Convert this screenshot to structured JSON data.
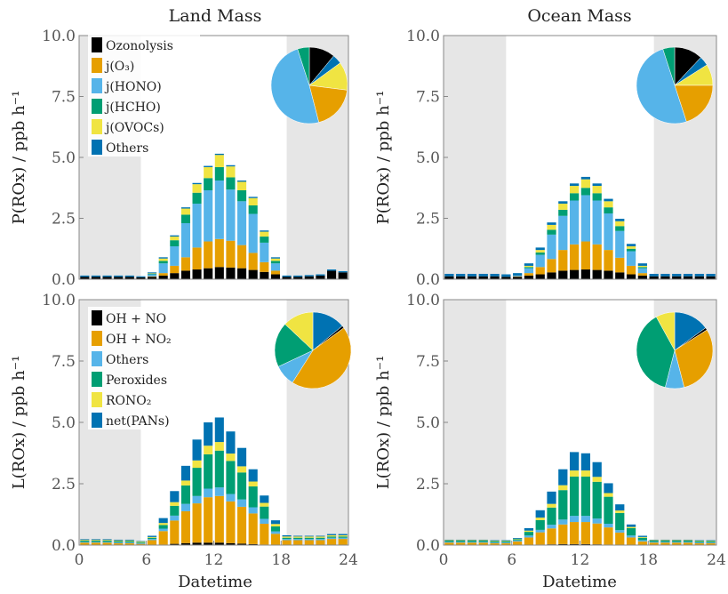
{
  "colors": {
    "Ozonolysis": "#000000",
    "jO3": "#E69F00",
    "jHONO": "#56B4E9",
    "jHCHO": "#009E73",
    "jOVOCs": "#F0E442",
    "OthersP": "#0072B2",
    "OH_NO": "#000000",
    "OH_NO2": "#E69F00",
    "OthersL": "#56B4E9",
    "Peroxides": "#009E73",
    "RONO2": "#F0E442",
    "netPANs": "#0072B2",
    "night_shade": "#e6e6e6"
  },
  "figure": {
    "col_titles": [
      "Land Mass",
      "Ocean Mass"
    ],
    "xlabel": "Datetime"
  },
  "chart_data": [
    {
      "type": "bar",
      "stacked": true,
      "title": "Land Mass",
      "ylabel": "P(ROx) / ppb h⁻¹",
      "xlabel": "",
      "ylim": [
        0,
        10
      ],
      "xlim": [
        0,
        24
      ],
      "yticks": [
        "0.0",
        "2.5",
        "5.0",
        "7.5",
        "10.0"
      ],
      "xticks": [],
      "night_shade": [
        [
          0,
          5.5
        ],
        [
          18.5,
          24
        ]
      ],
      "legend": [
        "Ozonolysis",
        "j(O₃)",
        "j(HONO)",
        "j(HCHO)",
        "j(OVOCs)",
        "Others"
      ],
      "series_colors": [
        "Ozonolysis",
        "jO3",
        "jHONO",
        "jHCHO",
        "jOVOCs",
        "OthersP"
      ],
      "x": [
        0.5,
        1.5,
        2.5,
        3.5,
        4.5,
        5.5,
        6.5,
        7.5,
        8.5,
        9.5,
        10.5,
        11.5,
        12.5,
        13.5,
        14.5,
        15.5,
        16.5,
        17.5,
        18.5,
        19.5,
        20.5,
        21.5,
        22.5,
        23.5
      ],
      "series": [
        {
          "name": "Ozonolysis",
          "values": [
            0.1,
            0.1,
            0.1,
            0.1,
            0.1,
            0.08,
            0.1,
            0.15,
            0.25,
            0.35,
            0.4,
            0.45,
            0.5,
            0.48,
            0.45,
            0.38,
            0.3,
            0.2,
            0.1,
            0.1,
            0.12,
            0.15,
            0.35,
            0.28
          ]
        },
        {
          "name": "j(O₃)",
          "values": [
            0,
            0,
            0,
            0,
            0,
            0,
            0.02,
            0.1,
            0.3,
            0.55,
            0.9,
            1.1,
            1.15,
            1.1,
            0.95,
            0.7,
            0.4,
            0.15,
            0,
            0,
            0,
            0,
            0,
            0
          ]
        },
        {
          "name": "j(HONO)",
          "values": [
            0,
            0,
            0,
            0,
            0,
            0,
            0.08,
            0.4,
            0.8,
            1.4,
            1.8,
            2.1,
            2.4,
            2.1,
            1.8,
            1.6,
            0.8,
            0.3,
            0,
            0,
            0,
            0,
            0,
            0
          ]
        },
        {
          "name": "j(HCHO)",
          "values": [
            0,
            0,
            0,
            0,
            0,
            0,
            0.02,
            0.1,
            0.25,
            0.35,
            0.45,
            0.5,
            0.55,
            0.5,
            0.45,
            0.35,
            0.25,
            0.1,
            0,
            0,
            0,
            0,
            0,
            0
          ]
        },
        {
          "name": "j(OVOCs)",
          "values": [
            0,
            0,
            0,
            0,
            0,
            0,
            0.02,
            0.1,
            0.15,
            0.25,
            0.35,
            0.45,
            0.5,
            0.45,
            0.35,
            0.3,
            0.2,
            0.1,
            0,
            0,
            0,
            0,
            0,
            0
          ]
        },
        {
          "name": "Others",
          "values": [
            0.05,
            0.05,
            0.05,
            0.05,
            0.05,
            0.04,
            0.04,
            0.05,
            0.05,
            0.05,
            0.05,
            0.05,
            0.05,
            0.05,
            0.05,
            0.05,
            0.05,
            0.05,
            0.05,
            0.05,
            0.05,
            0.05,
            0.05,
            0.05
          ]
        }
      ],
      "pie": [
        {
          "label": "Ozonolysis",
          "value": 11
        },
        {
          "label": "Others",
          "value": 4
        },
        {
          "label": "j(OVOCs)",
          "value": 12
        },
        {
          "label": "j(O₃)",
          "value": 19
        },
        {
          "label": "j(HONO)",
          "value": 49
        },
        {
          "label": "j(HCHO)",
          "value": 5
        }
      ]
    },
    {
      "type": "bar",
      "stacked": true,
      "title": "Ocean Mass",
      "ylabel": "P(ROx) / ppb h⁻¹",
      "xlabel": "",
      "ylim": [
        0,
        10
      ],
      "xlim": [
        0,
        24
      ],
      "yticks": [
        "0.0",
        "2.5",
        "5.0",
        "7.5",
        "10.0"
      ],
      "xticks": [],
      "night_shade": [
        [
          0,
          5.5
        ],
        [
          18.5,
          24
        ]
      ],
      "legend": [],
      "series_colors": [
        "Ozonolysis",
        "jO3",
        "jHONO",
        "jHCHO",
        "jOVOCs",
        "OthersP"
      ],
      "x": [
        0.5,
        1.5,
        2.5,
        3.5,
        4.5,
        5.5,
        6.5,
        7.5,
        8.5,
        9.5,
        10.5,
        11.5,
        12.5,
        13.5,
        14.5,
        15.5,
        16.5,
        17.5,
        18.5,
        19.5,
        20.5,
        21.5,
        22.5,
        23.5
      ],
      "series": [
        {
          "name": "Ozonolysis",
          "values": [
            0.12,
            0.12,
            0.12,
            0.12,
            0.12,
            0.1,
            0.1,
            0.15,
            0.2,
            0.28,
            0.35,
            0.38,
            0.4,
            0.38,
            0.35,
            0.28,
            0.2,
            0.15,
            0.12,
            0.12,
            0.12,
            0.12,
            0.12,
            0.12
          ]
        },
        {
          "name": "j(O₃)",
          "values": [
            0,
            0,
            0,
            0,
            0,
            0,
            0.02,
            0.1,
            0.3,
            0.55,
            0.85,
            1.05,
            1.15,
            1.05,
            0.85,
            0.6,
            0.35,
            0.1,
            0,
            0,
            0,
            0,
            0,
            0
          ]
        },
        {
          "name": "j(HONO)",
          "values": [
            0,
            0,
            0,
            0,
            0,
            0,
            0.03,
            0.2,
            0.5,
            1.0,
            1.4,
            1.8,
            1.9,
            1.8,
            1.5,
            1.1,
            0.6,
            0.2,
            0,
            0,
            0,
            0,
            0,
            0
          ]
        },
        {
          "name": "j(HCHO)",
          "values": [
            0,
            0,
            0,
            0,
            0,
            0,
            0,
            0.05,
            0.1,
            0.2,
            0.25,
            0.3,
            0.3,
            0.3,
            0.25,
            0.2,
            0.1,
            0.05,
            0,
            0,
            0,
            0,
            0,
            0
          ]
        },
        {
          "name": "j(OVOCs)",
          "values": [
            0,
            0,
            0,
            0,
            0,
            0,
            0,
            0.05,
            0.1,
            0.2,
            0.25,
            0.3,
            0.35,
            0.3,
            0.25,
            0.2,
            0.1,
            0.05,
            0,
            0,
            0,
            0,
            0,
            0
          ]
        },
        {
          "name": "Others",
          "values": [
            0.1,
            0.1,
            0.1,
            0.1,
            0.1,
            0.1,
            0.1,
            0.1,
            0.1,
            0.1,
            0.1,
            0.1,
            0.1,
            0.1,
            0.1,
            0.1,
            0.1,
            0.1,
            0.1,
            0.1,
            0.1,
            0.1,
            0.1,
            0.1
          ]
        }
      ],
      "pie": [
        {
          "label": "Ozonolysis",
          "value": 12
        },
        {
          "label": "Others",
          "value": 4
        },
        {
          "label": "j(OVOCs)",
          "value": 9
        },
        {
          "label": "j(O₃)",
          "value": 20
        },
        {
          "label": "j(HONO)",
          "value": 50
        },
        {
          "label": "j(HCHO)",
          "value": 5
        }
      ]
    },
    {
      "type": "bar",
      "stacked": true,
      "title": "",
      "ylabel": "L(ROx) / ppb h⁻¹",
      "xlabel": "Datetime",
      "ylim": [
        0,
        10
      ],
      "xlim": [
        0,
        24
      ],
      "yticks": [
        "0.0",
        "2.5",
        "5.0",
        "7.5",
        "10.0"
      ],
      "xticks": [
        "0",
        "6",
        "12",
        "18",
        "24"
      ],
      "night_shade": [
        [
          0,
          5.5
        ],
        [
          18.5,
          24
        ]
      ],
      "legend": [
        "OH + NO",
        "OH + NO₂",
        "Others",
        "Peroxides",
        "RONO₂",
        "net(PANs)"
      ],
      "series_colors": [
        "OH_NO",
        "OH_NO2",
        "OthersL",
        "Peroxides",
        "RONO2",
        "netPANs"
      ],
      "x": [
        0.5,
        1.5,
        2.5,
        3.5,
        4.5,
        5.5,
        6.5,
        7.5,
        8.5,
        9.5,
        10.5,
        11.5,
        12.5,
        13.5,
        14.5,
        15.5,
        16.5,
        17.5,
        18.5,
        19.5,
        20.5,
        21.5,
        22.5,
        23.5
      ],
      "series": [
        {
          "name": "OH + NO",
          "values": [
            0,
            0,
            0,
            0,
            0,
            0,
            0,
            0.02,
            0.05,
            0.08,
            0.1,
            0.1,
            0.1,
            0.08,
            0.06,
            0.04,
            0.02,
            0.01,
            0,
            0,
            0,
            0,
            0,
            0
          ]
        },
        {
          "name": "OH + NO₂",
          "values": [
            0.1,
            0.1,
            0.1,
            0.08,
            0.08,
            0.05,
            0.2,
            0.55,
            0.95,
            1.3,
            1.6,
            1.85,
            1.9,
            1.7,
            1.5,
            1.25,
            0.85,
            0.45,
            0.2,
            0.2,
            0.2,
            0.2,
            0.25,
            0.25
          ]
        },
        {
          "name": "Others",
          "values": [
            0.03,
            0.03,
            0.03,
            0.03,
            0.03,
            0.03,
            0.05,
            0.1,
            0.2,
            0.3,
            0.3,
            0.35,
            0.35,
            0.3,
            0.3,
            0.25,
            0.2,
            0.1,
            0.05,
            0.05,
            0.05,
            0.05,
            0.05,
            0.05
          ]
        },
        {
          "name": "Peroxides",
          "values": [
            0.05,
            0.05,
            0.05,
            0.05,
            0.05,
            0.04,
            0.05,
            0.15,
            0.4,
            0.75,
            1.15,
            1.4,
            1.5,
            1.35,
            1.1,
            0.85,
            0.5,
            0.2,
            0.05,
            0.05,
            0.05,
            0.05,
            0.05,
            0.05
          ]
        },
        {
          "name": "RONO₂",
          "values": [
            0.03,
            0.03,
            0.03,
            0.03,
            0.03,
            0.03,
            0.03,
            0.08,
            0.15,
            0.2,
            0.3,
            0.35,
            0.35,
            0.3,
            0.25,
            0.2,
            0.15,
            0.1,
            0.05,
            0.05,
            0.05,
            0.05,
            0.05,
            0.05
          ]
        },
        {
          "name": "net(PANs)",
          "values": [
            0.03,
            0.03,
            0.03,
            0.03,
            0.03,
            0.02,
            0.05,
            0.2,
            0.45,
            0.6,
            0.85,
            0.95,
            1.0,
            0.9,
            0.75,
            0.5,
            0.3,
            0.15,
            0.05,
            0.03,
            0.03,
            0.03,
            0.05,
            0.05
          ]
        }
      ],
      "pie": [
        {
          "label": "net(PANs)",
          "value": 14
        },
        {
          "label": "OH + NO",
          "value": 1
        },
        {
          "label": "OH + NO₂",
          "value": 44
        },
        {
          "label": "Others",
          "value": 9
        },
        {
          "label": "Peroxides",
          "value": 19
        },
        {
          "label": "RONO₂",
          "value": 13
        }
      ]
    },
    {
      "type": "bar",
      "stacked": true,
      "title": "",
      "ylabel": "L(ROx) / ppb h⁻¹",
      "xlabel": "Datetime",
      "ylim": [
        0,
        10
      ],
      "xlim": [
        0,
        24
      ],
      "yticks": [
        "0.0",
        "2.5",
        "5.0",
        "7.5",
        "10.0"
      ],
      "xticks": [
        "0",
        "6",
        "12",
        "18",
        "24"
      ],
      "night_shade": [
        [
          0,
          5.5
        ],
        [
          18.5,
          24
        ]
      ],
      "legend": [],
      "series_colors": [
        "OH_NO",
        "OH_NO2",
        "OthersL",
        "Peroxides",
        "RONO2",
        "netPANs"
      ],
      "x": [
        0.5,
        1.5,
        2.5,
        3.5,
        4.5,
        5.5,
        6.5,
        7.5,
        8.5,
        9.5,
        10.5,
        11.5,
        12.5,
        13.5,
        14.5,
        15.5,
        16.5,
        17.5,
        18.5,
        19.5,
        20.5,
        21.5,
        22.5,
        23.5
      ],
      "series": [
        {
          "name": "OH + NO",
          "values": [
            0,
            0,
            0,
            0,
            0,
            0,
            0,
            0.01,
            0.02,
            0.03,
            0.04,
            0.04,
            0.04,
            0.03,
            0.02,
            0.01,
            0.01,
            0,
            0,
            0,
            0,
            0,
            0,
            0
          ]
        },
        {
          "name": "OH + NO₂",
          "values": [
            0.1,
            0.1,
            0.1,
            0.1,
            0.08,
            0.08,
            0.15,
            0.3,
            0.5,
            0.65,
            0.8,
            0.9,
            0.9,
            0.85,
            0.7,
            0.5,
            0.3,
            0.15,
            0.1,
            0.1,
            0.1,
            0.1,
            0.08,
            0.08
          ]
        },
        {
          "name": "Others",
          "values": [
            0.03,
            0.03,
            0.03,
            0.03,
            0.03,
            0.03,
            0.04,
            0.08,
            0.1,
            0.15,
            0.2,
            0.25,
            0.25,
            0.2,
            0.15,
            0.1,
            0.08,
            0.05,
            0.03,
            0.03,
            0.03,
            0.03,
            0.03,
            0.03
          ]
        },
        {
          "name": "Peroxides",
          "values": [
            0.05,
            0.05,
            0.05,
            0.05,
            0.05,
            0.05,
            0.05,
            0.15,
            0.4,
            0.7,
            1.2,
            1.6,
            1.6,
            1.5,
            1.1,
            0.7,
            0.3,
            0.1,
            0.05,
            0.05,
            0.05,
            0.05,
            0.05,
            0.05
          ]
        },
        {
          "name": "RONO₂",
          "values": [
            0.02,
            0.02,
            0.02,
            0.02,
            0.02,
            0.02,
            0.02,
            0.05,
            0.1,
            0.15,
            0.2,
            0.25,
            0.25,
            0.2,
            0.15,
            0.1,
            0.05,
            0.03,
            0.02,
            0.02,
            0.02,
            0.02,
            0.02,
            0.02
          ]
        },
        {
          "name": "net(PANs)",
          "values": [
            0.02,
            0.02,
            0.02,
            0.02,
            0.02,
            0.02,
            0.03,
            0.1,
            0.3,
            0.5,
            0.65,
            0.75,
            0.7,
            0.6,
            0.4,
            0.25,
            0.1,
            0.05,
            0.02,
            0.02,
            0.02,
            0.02,
            0.02,
            0.02
          ]
        }
      ],
      "pie": [
        {
          "label": "net(PANs)",
          "value": 15
        },
        {
          "label": "OH + NO",
          "value": 1
        },
        {
          "label": "OH + NO₂",
          "value": 30
        },
        {
          "label": "Others",
          "value": 8
        },
        {
          "label": "Peroxides",
          "value": 38
        },
        {
          "label": "RONO₂",
          "value": 8
        }
      ]
    }
  ]
}
